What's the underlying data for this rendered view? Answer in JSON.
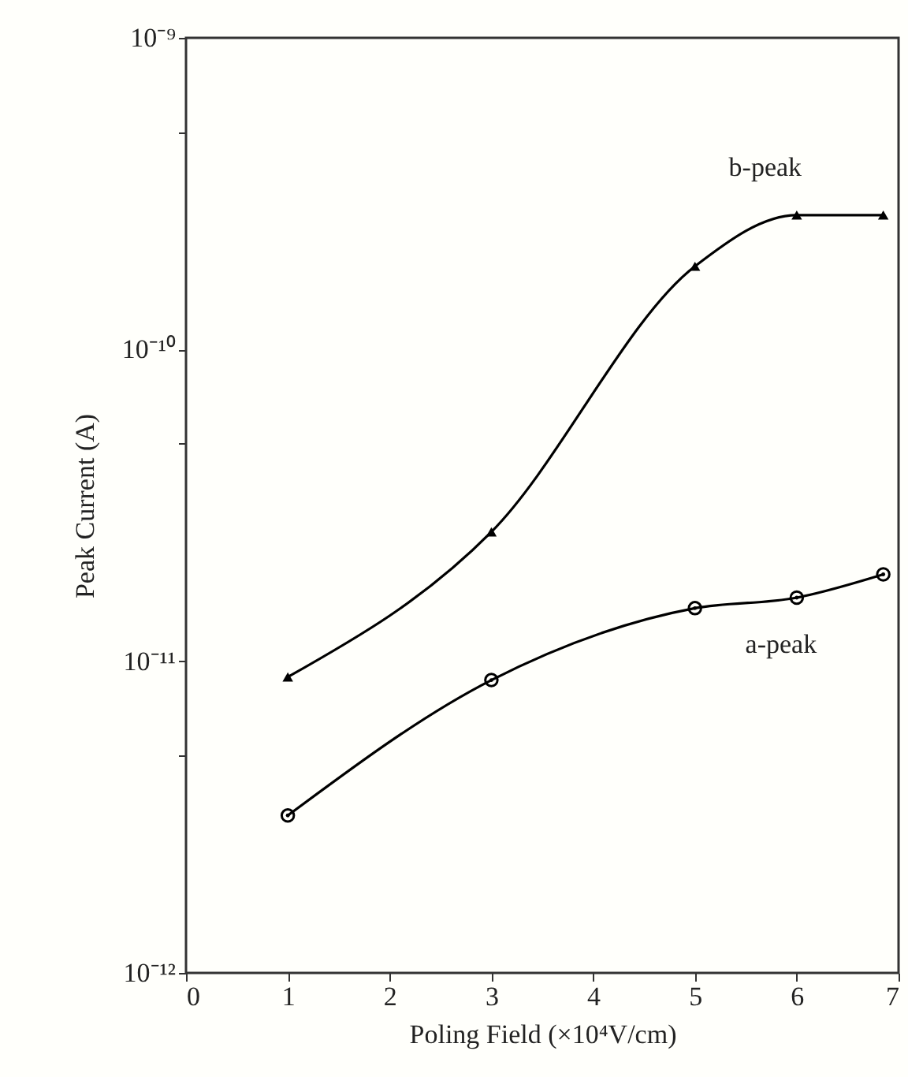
{
  "chart_data": {
    "type": "line",
    "xlabel": "Poling Field (×10⁴V/cm)",
    "ylabel": "Peak Current (A)",
    "log": "y",
    "xlim": [
      0,
      7
    ],
    "xticks": [
      0,
      1,
      2,
      3,
      4,
      5,
      6,
      7
    ],
    "ylim": [
      1e-12,
      1e-09
    ],
    "yticks": [
      {
        "value": 1e-12,
        "label": "10⁻¹²"
      },
      {
        "value": 5e-12,
        "label": null
      },
      {
        "value": 1e-11,
        "label": "10⁻¹¹"
      },
      {
        "value": 5e-11,
        "label": null
      },
      {
        "value": 1e-10,
        "label": "10⁻¹⁰"
      },
      {
        "value": 5e-10,
        "label": null
      },
      {
        "value": 1e-09,
        "label": "10⁻⁹"
      }
    ],
    "grid": false,
    "series": [
      {
        "name": "b-peak",
        "color": "#000000",
        "marker": "triangle",
        "x": [
          1,
          3,
          5,
          6,
          6.85
        ],
        "values": [
          8.9e-12,
          2.6e-11,
          1.85e-10,
          2.7e-10,
          2.7e-10
        ]
      },
      {
        "name": "a-peak",
        "color": "#000000",
        "marker": "circle",
        "x": [
          1,
          3,
          5,
          6,
          6.85
        ],
        "values": [
          3.2e-12,
          8.7e-12,
          1.48e-11,
          1.6e-11,
          1.9e-11
        ]
      }
    ]
  }
}
